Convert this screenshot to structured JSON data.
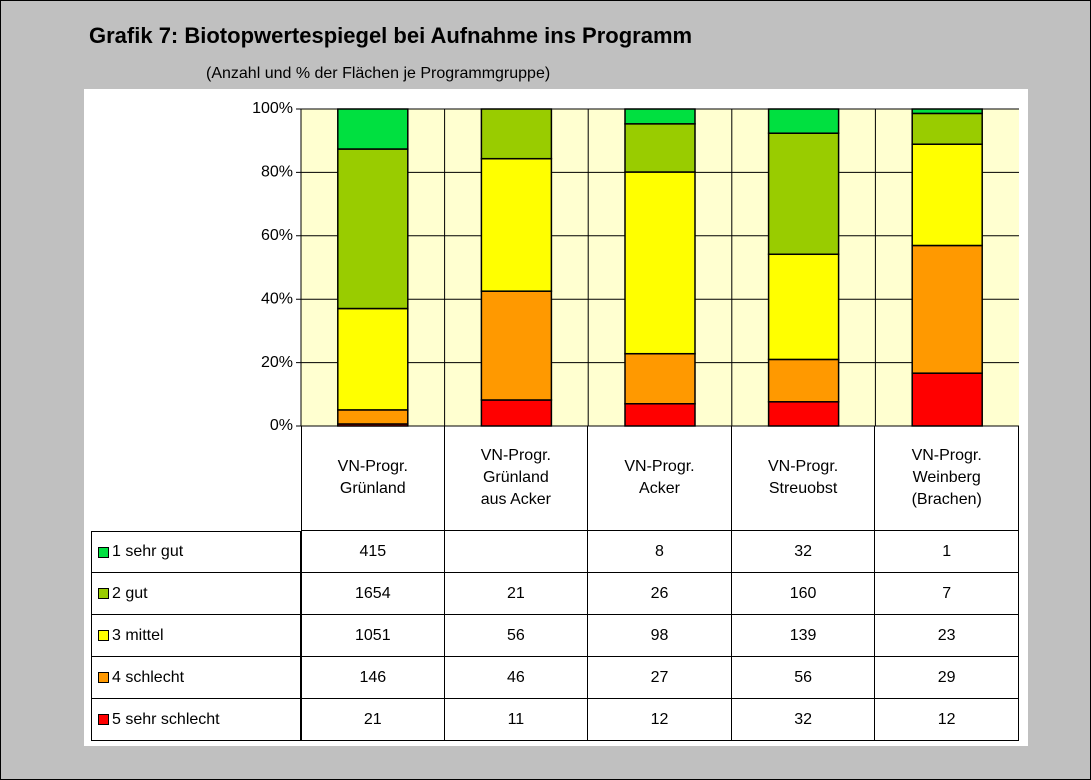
{
  "chart_data": {
    "type": "stacked_bar_100",
    "title": "Grafik 7: Biotopwertespiegel bei Aufnahme ins Programm",
    "subtitle": "(Anzahl und % der Flächen je Programmgruppe)",
    "categories": [
      "VN-Progr.\nGrünland",
      "VN-Progr.\nGrünland\naus Acker",
      "VN-Progr.\nAcker",
      "VN-Progr.\nStreuobst",
      "VN-Progr.\nWeinberg\n(Brachen)"
    ],
    "series": [
      {
        "name": "1 sehr gut",
        "color": "#00e040",
        "values": [
          415,
          null,
          8,
          32,
          1
        ]
      },
      {
        "name": "2 gut",
        "color": "#99cc00",
        "values": [
          1654,
          21,
          26,
          160,
          7
        ]
      },
      {
        "name": "3 mittel",
        "color": "#ffff00",
        "values": [
          1051,
          56,
          98,
          139,
          23
        ]
      },
      {
        "name": "4 schlecht",
        "color": "#ff9900",
        "values": [
          146,
          46,
          27,
          56,
          29
        ]
      },
      {
        "name": "5 sehr schlecht",
        "color": "#ff0000",
        "values": [
          21,
          11,
          12,
          32,
          12
        ]
      }
    ],
    "ylim": [
      0,
      100
    ],
    "yticks": [
      {
        "value": 0,
        "label": "0%"
      },
      {
        "value": 20,
        "label": "20%"
      },
      {
        "value": 40,
        "label": "40%"
      },
      {
        "value": 60,
        "label": "60%"
      },
      {
        "value": 80,
        "label": "80%"
      },
      {
        "value": 100,
        "label": "100%"
      }
    ],
    "grid": true
  }
}
